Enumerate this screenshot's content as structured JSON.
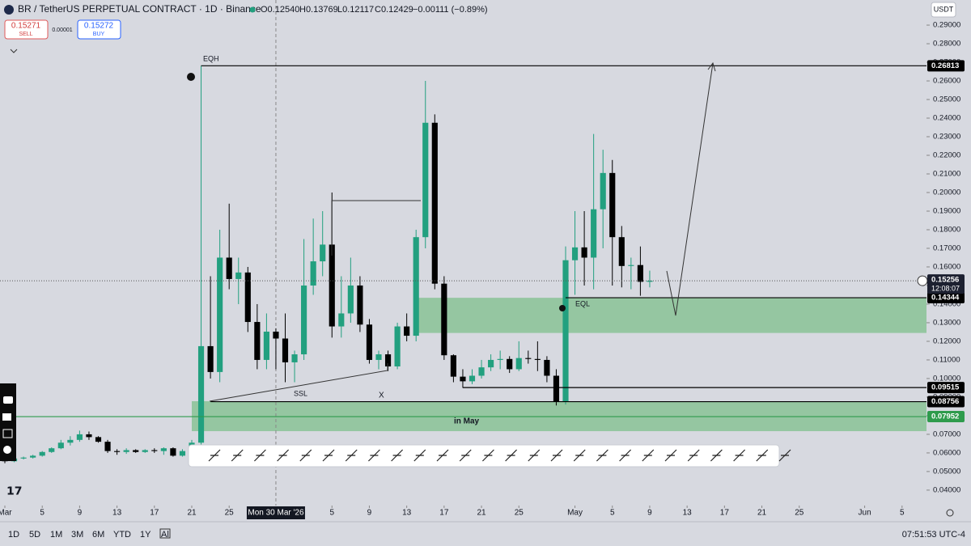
{
  "ui": {
    "symbol": "BR / TetherUS PERPETUAL CONTRACT · 1D · Binance",
    "open": "O0.12540",
    "high": "H0.13769",
    "low": "L0.12117",
    "close": "C0.12429",
    "change": "−0.00111 (−0.89%)",
    "sell_price": "0.15271",
    "sell": "SELL",
    "spread": "0.00001",
    "buy_price": "0.15272",
    "buy": "BUY",
    "currency": "USDT",
    "ranges": [
      "1D",
      "5D",
      "1M",
      "3M",
      "6M",
      "YTD",
      "1Y",
      "All"
    ],
    "clock": "07:51:53 UTC-4"
  },
  "chart_data": {
    "type": "candlestick",
    "up_color": "#22a07f",
    "down_color": "#000000",
    "x": [
      "2026-03-01",
      "2026-03-02",
      "2026-03-03",
      "2026-03-04",
      "2026-03-05",
      "2026-03-06",
      "2026-03-07",
      "2026-03-08",
      "2026-03-09",
      "2026-03-10",
      "2026-03-11",
      "2026-03-12",
      "2026-03-13",
      "2026-03-14",
      "2026-03-15",
      "2026-03-16",
      "2026-03-17",
      "2026-03-18",
      "2026-03-19",
      "2026-03-20",
      "2026-03-21",
      "2026-03-22",
      "2026-03-23",
      "2026-03-24",
      "2026-03-25",
      "2026-03-26",
      "2026-03-27",
      "2026-03-28",
      "2026-03-29",
      "2026-03-30",
      "2026-03-31",
      "2026-04-01",
      "2026-04-02",
      "2026-04-03",
      "2026-04-04",
      "2026-04-05",
      "2026-04-06",
      "2026-04-07",
      "2026-04-08",
      "2026-04-09",
      "2026-04-10",
      "2026-04-11",
      "2026-04-12",
      "2026-04-13",
      "2026-04-14",
      "2026-04-15",
      "2026-04-16",
      "2026-04-17",
      "2026-04-18",
      "2026-04-19",
      "2026-04-20",
      "2026-04-21",
      "2026-04-22",
      "2026-04-23",
      "2026-04-24",
      "2026-04-25",
      "2026-04-26",
      "2026-04-27",
      "2026-04-28",
      "2026-04-29",
      "2026-04-30",
      "2026-05-01",
      "2026-05-02",
      "2026-05-03",
      "2026-05-04",
      "2026-05-05",
      "2026-05-06",
      "2026-05-07",
      "2026-05-08",
      "2026-05-09"
    ],
    "open": [
      0.056,
      0.0555,
      0.057,
      0.0575,
      0.0585,
      0.0605,
      0.0625,
      0.0655,
      0.067,
      0.07,
      0.0685,
      0.066,
      0.061,
      0.0605,
      0.0615,
      0.0605,
      0.0615,
      0.061,
      0.0625,
      0.0585,
      0.061,
      0.0655,
      0.1174,
      0.1035,
      0.165,
      0.1535,
      0.157,
      0.1304,
      0.11,
      0.1252,
      0.1215,
      0.1087,
      0.113,
      0.15,
      0.163,
      0.172,
      0.128,
      0.135,
      0.15,
      0.129,
      0.11,
      0.113,
      0.1065,
      0.128,
      0.123,
      0.176,
      0.2375,
      0.151,
      0.1125,
      0.101,
      0.0985,
      0.1015,
      0.106,
      0.11,
      0.1105,
      0.105,
      0.111,
      0.1105,
      0.11,
      0.1015,
      0.0876,
      0.1636,
      0.1705,
      0.165,
      0.191,
      0.2105,
      0.176,
      0.1605,
      0.161,
      0.152
    ],
    "high": [
      0.0575,
      0.058,
      0.058,
      0.059,
      0.061,
      0.063,
      0.067,
      0.069,
      0.072,
      0.0715,
      0.069,
      0.067,
      0.062,
      0.0625,
      0.062,
      0.062,
      0.0625,
      0.063,
      0.063,
      0.062,
      0.067,
      0.2681,
      0.155,
      0.18,
      0.194,
      0.165,
      0.16,
      0.14,
      0.135,
      0.127,
      0.135,
      0.115,
      0.175,
      0.186,
      0.19,
      0.2,
      0.155,
      0.165,
      0.155,
      0.132,
      0.115,
      0.115,
      0.13,
      0.135,
      0.18,
      0.26,
      0.242,
      0.155,
      0.113,
      0.105,
      0.105,
      0.11,
      0.113,
      0.115,
      0.112,
      0.12,
      0.115,
      0.12,
      0.112,
      0.105,
      0.171,
      0.19,
      0.19,
      0.2315,
      0.223,
      0.2175,
      0.182,
      0.165,
      0.171,
      0.158
    ],
    "low": [
      0.0545,
      0.055,
      0.0565,
      0.057,
      0.058,
      0.06,
      0.062,
      0.064,
      0.066,
      0.067,
      0.0655,
      0.06,
      0.059,
      0.0595,
      0.06,
      0.06,
      0.06,
      0.059,
      0.058,
      0.058,
      0.06,
      0.064,
      0.1,
      0.098,
      0.148,
      0.14,
      0.125,
      0.105,
      0.105,
      0.105,
      0.098,
      0.098,
      0.11,
      0.145,
      0.155,
      0.122,
      0.122,
      0.13,
      0.125,
      0.108,
      0.105,
      0.104,
      0.105,
      0.12,
      0.12,
      0.17,
      0.148,
      0.11,
      0.098,
      0.095,
      0.097,
      0.1,
      0.104,
      0.105,
      0.103,
      0.104,
      0.108,
      0.104,
      0.098,
      0.0855,
      0.086,
      0.145,
      0.15,
      0.148,
      0.17,
      0.15,
      0.149,
      0.148,
      0.1445,
      0.149
    ],
    "close": [
      0.0555,
      0.057,
      0.0575,
      0.0585,
      0.0605,
      0.0625,
      0.0655,
      0.067,
      0.07,
      0.0685,
      0.066,
      0.061,
      0.0605,
      0.0615,
      0.0605,
      0.0615,
      0.061,
      0.0625,
      0.0585,
      0.061,
      0.0655,
      0.1174,
      0.1035,
      0.165,
      0.1535,
      0.157,
      0.1304,
      0.11,
      0.1252,
      0.1215,
      0.1087,
      0.113,
      0.15,
      0.163,
      0.172,
      0.128,
      0.135,
      0.15,
      0.129,
      0.11,
      0.113,
      0.1065,
      0.128,
      0.123,
      0.176,
      0.2375,
      0.151,
      0.1125,
      0.101,
      0.0985,
      0.1015,
      0.106,
      0.11,
      0.1105,
      0.105,
      0.111,
      0.1105,
      0.11,
      0.1015,
      0.0876,
      0.1636,
      0.1705,
      0.165,
      0.191,
      0.2105,
      0.176,
      0.1605,
      0.161,
      0.152,
      0.15256
    ],
    "xlim": [
      "2026-02-28",
      "2026-06-07"
    ],
    "ylim": [
      0.0317,
      0.3035
    ],
    "yticks": [
      {
        "value": 0.04,
        "label": "0.04000"
      },
      {
        "value": 0.05,
        "label": "0.05000"
      },
      {
        "value": 0.06,
        "label": "0.06000"
      },
      {
        "value": 0.07,
        "label": "0.07000"
      },
      {
        "value": 0.08,
        "label": "0.08000"
      },
      {
        "value": 0.09,
        "label": "0.09000"
      },
      {
        "value": 0.1,
        "label": "0.10000"
      },
      {
        "value": 0.11,
        "label": "0.11000"
      },
      {
        "value": 0.12,
        "label": "0.12000"
      },
      {
        "value": 0.13,
        "label": "0.13000"
      },
      {
        "value": 0.14,
        "label": "0.14000"
      },
      {
        "value": 0.15,
        "label": "0.15000"
      },
      {
        "value": 0.16,
        "label": "0.16000"
      },
      {
        "value": 0.17,
        "label": "0.17000"
      },
      {
        "value": 0.18,
        "label": "0.18000"
      },
      {
        "value": 0.19,
        "label": "0.19000"
      },
      {
        "value": 0.2,
        "label": "0.20000"
      },
      {
        "value": 0.21,
        "label": "0.21000"
      },
      {
        "value": 0.22,
        "label": "0.22000"
      },
      {
        "value": 0.23,
        "label": "0.23000"
      },
      {
        "value": 0.24,
        "label": "0.24000"
      },
      {
        "value": 0.25,
        "label": "0.25000"
      },
      {
        "value": 0.26,
        "label": "0.26000"
      },
      {
        "value": 0.27,
        "label": "0.27000"
      },
      {
        "value": 0.28,
        "label": "0.28000"
      },
      {
        "value": 0.29,
        "label": "0.29000"
      }
    ],
    "xticks": [
      {
        "value": "2026-03-01",
        "label": "Mar"
      },
      {
        "value": "2026-03-05",
        "label": "5"
      },
      {
        "value": "2026-03-09",
        "label": "9"
      },
      {
        "value": "2026-03-13",
        "label": "13"
      },
      {
        "value": "2026-03-17",
        "label": "17"
      },
      {
        "value": "2026-03-21",
        "label": "21"
      },
      {
        "value": "2026-03-25",
        "label": "25"
      },
      {
        "value": "2026-04-05",
        "label": "5"
      },
      {
        "value": "2026-04-09",
        "label": "9"
      },
      {
        "value": "2026-04-13",
        "label": "13"
      },
      {
        "value": "2026-04-17",
        "label": "17"
      },
      {
        "value": "2026-04-21",
        "label": "21"
      },
      {
        "value": "2026-04-25",
        "label": "25"
      },
      {
        "value": "2026-05-01",
        "label": "May"
      },
      {
        "value": "2026-05-05",
        "label": "5"
      },
      {
        "value": "2026-05-09",
        "label": "9"
      },
      {
        "value": "2026-05-13",
        "label": "13"
      },
      {
        "value": "2026-05-17",
        "label": "17"
      },
      {
        "value": "2026-05-21",
        "label": "21"
      },
      {
        "value": "2026-05-25",
        "label": "25"
      },
      {
        "value": "2026-06-01",
        "label": "Jun"
      },
      {
        "value": "2026-06-05",
        "label": "5"
      }
    ],
    "crosshair": {
      "value": "2026-03-30",
      "label": "Mon 30 Mar '26"
    },
    "countdown": "12:08:07",
    "levels": [
      {
        "value": 0.26813,
        "from": "2026-03-22",
        "color": "#000000"
      },
      {
        "value": 0.14344,
        "from": "2026-04-30",
        "color": "#000000"
      },
      {
        "value": 0.09515,
        "from": "2026-04-19",
        "color": "#000000"
      },
      {
        "value": 0.08756,
        "from": "2026-03-23",
        "color": "#000000"
      },
      {
        "value": 0.07952,
        "from": "2026-02-28",
        "color": "#2e9b4c"
      }
    ],
    "zones": [
      {
        "low": 0.1245,
        "high": 0.1434,
        "from": "2026-04-14",
        "color": "#7fbf8c"
      },
      {
        "low": 0.0717,
        "high": 0.0878,
        "from": "2026-03-21",
        "color": "#7fbf8c"
      }
    ],
    "annotations": [
      "EQH",
      "EQL",
      "SSL",
      "X",
      "in May"
    ]
  }
}
